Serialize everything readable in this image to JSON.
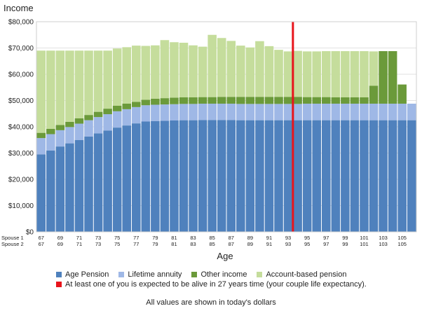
{
  "chart_data": {
    "type": "bar",
    "stacked": true,
    "title": "Income",
    "xlabel": "Age",
    "ylim": [
      0,
      80000
    ],
    "yticks": [
      "$0",
      "$10,000",
      "$20,000",
      "$30,000",
      "$40,000",
      "$50,000",
      "$60,000",
      "$70,000",
      "$80,000"
    ],
    "grid": true,
    "row_labels": [
      "Spouse 1",
      "Spouse 2"
    ],
    "ages": [
      67,
      68,
      69,
      70,
      71,
      72,
      73,
      74,
      75,
      76,
      77,
      78,
      79,
      80,
      81,
      82,
      83,
      84,
      85,
      86,
      87,
      88,
      89,
      90,
      91,
      92,
      93,
      94,
      95,
      96,
      97,
      98,
      99,
      100,
      101,
      102,
      103,
      104,
      105,
      106
    ],
    "age_tick_labels": [
      "67",
      "69",
      "71",
      "73",
      "75",
      "77",
      "79",
      "81",
      "83",
      "85",
      "87",
      "89",
      "91",
      "93",
      "95",
      "97",
      "99",
      "101",
      "103",
      "105"
    ],
    "series": [
      {
        "name": "Age Pension",
        "color": "#4f81bd",
        "values": [
          29500,
          31000,
          32500,
          33700,
          35000,
          36300,
          37500,
          38600,
          39700,
          40500,
          41300,
          42000,
          42200,
          42300,
          42400,
          42500,
          42500,
          42600,
          42600,
          42600,
          42600,
          42500,
          42500,
          42500,
          42500,
          42500,
          42500,
          42500,
          42500,
          42500,
          42500,
          42500,
          42500,
          42500,
          42500,
          42500,
          42500,
          42500,
          42500,
          42500
        ]
      },
      {
        "name": "Lifetime annuity",
        "color": "#9fb8e6",
        "values": [
          6200,
          6200,
          6200,
          6200,
          6200,
          6200,
          6200,
          6200,
          6200,
          6200,
          6200,
          6200,
          6200,
          6200,
          6200,
          6200,
          6200,
          6200,
          6200,
          6200,
          6200,
          6200,
          6200,
          6200,
          6200,
          6200,
          6200,
          6200,
          6300,
          6300,
          6300,
          6300,
          6300,
          6300,
          6300,
          6300,
          6300,
          6300,
          6300,
          6300
        ]
      },
      {
        "name": "Other income",
        "color": "#6b9a3a",
        "values": [
          2000,
          2000,
          2000,
          2000,
          2000,
          2000,
          2000,
          2100,
          2100,
          2100,
          2000,
          2100,
          2300,
          2400,
          2500,
          2500,
          2500,
          2500,
          2500,
          2600,
          2600,
          2700,
          2700,
          2700,
          2700,
          2700,
          2700,
          2700,
          2500,
          2500,
          2500,
          2400,
          2400,
          2400,
          2400,
          6800,
          20000,
          20000,
          7300,
          0
        ]
      },
      {
        "name": "Account-based pension",
        "color": "#c5dd9c",
        "values": [
          31300,
          29800,
          28300,
          27100,
          25800,
          24500,
          23300,
          22100,
          21800,
          21500,
          21400,
          20500,
          20300,
          22100,
          21100,
          20800,
          19800,
          19200,
          23700,
          22400,
          21300,
          19500,
          18800,
          21200,
          19300,
          17900,
          17300,
          17500,
          17400,
          17400,
          17500,
          17600,
          17600,
          17600,
          17600,
          13100,
          0,
          0,
          0,
          0
        ]
      }
    ],
    "life_expectancy_marker": {
      "after_age": 93,
      "color": "#e8141b"
    }
  },
  "legend": {
    "items": [
      "Age Pension",
      "Lifetime annuity",
      "Other income",
      "Account-based pension"
    ],
    "marker_text": "At least one of you is expected to be alive in 27 years time (your couple life expectancy)."
  },
  "footnote": "All values are shown in today's dollars"
}
